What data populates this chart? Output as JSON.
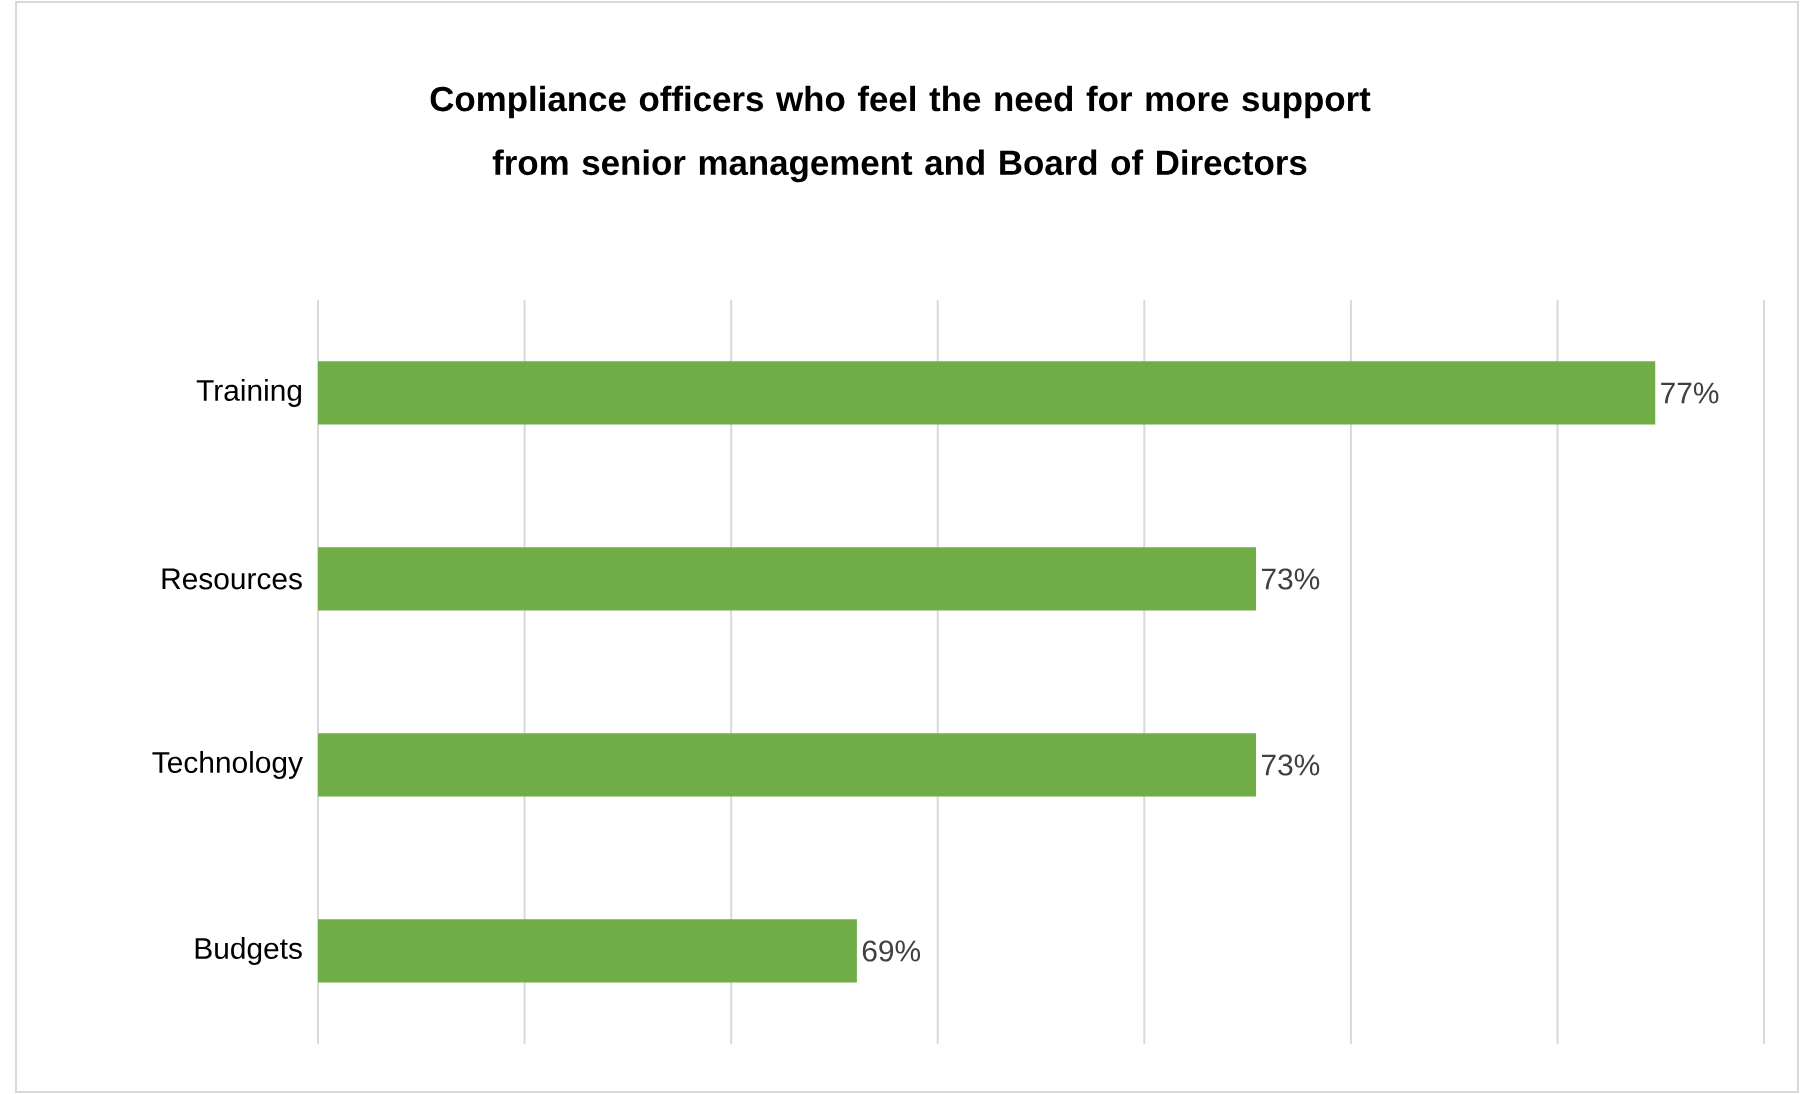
{
  "chart_data": {
    "type": "bar",
    "orientation": "horizontal",
    "title": "Compliance officers who feel the need for more support\nfrom senior management and Board of Directors",
    "categories": [
      "Training",
      "Resources",
      "Technology",
      "Budgets"
    ],
    "values": [
      77,
      73,
      73,
      69
    ],
    "color": "#70ad47",
    "data_labels": true,
    "value_labels": [
      "77%",
      "73%",
      "73%",
      "69%"
    ],
    "xlim": [
      63.6,
      78.09
    ],
    "xticks": [
      {
        "value": 63.6,
        "label": null
      },
      {
        "value": 65.67,
        "label": null
      },
      {
        "value": 67.74,
        "label": null
      },
      {
        "value": 69.81,
        "label": null
      },
      {
        "value": 71.88,
        "label": null
      },
      {
        "value": 73.95,
        "label": null
      },
      {
        "value": 76.02,
        "label": null
      },
      {
        "value": 78.09,
        "label": null
      }
    ],
    "grid": "x",
    "tick_labels": "y"
  }
}
